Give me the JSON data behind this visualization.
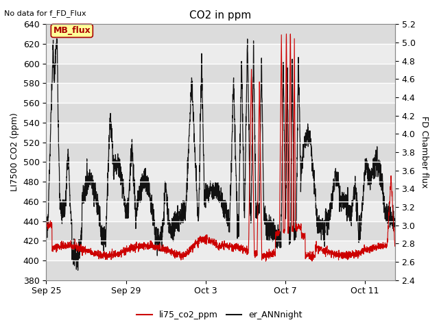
{
  "title": "CO2 in ppm",
  "top_left_text": "No data for f_FD_Flux",
  "ylabel_left": "LI7500 CO2 (ppm)",
  "ylabel_right": "FD Chamber flux",
  "ylim_left": [
    380,
    640
  ],
  "ylim_right": [
    2.4,
    5.2
  ],
  "yticks_left": [
    380,
    400,
    420,
    440,
    460,
    480,
    500,
    520,
    540,
    560,
    580,
    600,
    620,
    640
  ],
  "yticks_right": [
    2.4,
    2.6,
    2.8,
    3.0,
    3.2,
    3.4,
    3.6,
    3.8,
    4.0,
    4.2,
    4.4,
    4.6,
    4.8,
    5.0,
    5.2
  ],
  "xtick_labels": [
    "Sep 25",
    "Sep 29",
    "Oct 3",
    "Oct 7",
    "Oct 11"
  ],
  "xtick_pos": [
    0,
    4,
    8,
    12,
    16
  ],
  "xlim": [
    0,
    17.5
  ],
  "legend_items": [
    {
      "label": "li75_co2_ppm",
      "color": "#cc0000",
      "lw": 1.5
    },
    {
      "label": "er_ANNnight",
      "color": "#111111",
      "lw": 1.5
    }
  ],
  "mb_flux_box": {
    "text": "MB_flux",
    "text_color": "#aa0000",
    "box_color": "#ffff99",
    "edge_color": "#aa0000"
  },
  "bg_color": "#ffffff",
  "plot_bg_color": "#e8e8e8",
  "grid_color": "#ffffff",
  "line_red_color": "#cc0000",
  "line_black_color": "#111111",
  "band_color_light": "#f0f0f0",
  "band_color_dark": "#e0e0e0"
}
